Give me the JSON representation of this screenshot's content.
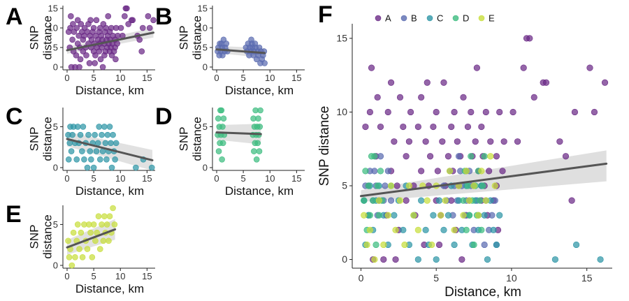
{
  "colors": {
    "A": "#6b2a86",
    "B": "#5a6bb0",
    "C": "#2e96a6",
    "D": "#3dbc80",
    "E": "#c8de3c",
    "fit_line": "#555555",
    "ci_band": "#d9d9d9"
  },
  "chart_data": [
    {
      "panel": "A",
      "type": "scatter",
      "xlabel": "Distance, km",
      "ylabel": "SNP distance",
      "xlim": [
        0,
        16
      ],
      "ylim": [
        0,
        15
      ],
      "xticks": [
        0,
        5,
        10,
        15
      ],
      "yticks": [
        0,
        5,
        10,
        15
      ],
      "series": [
        {
          "name": "A",
          "points": [
            [
              0.3,
              9
            ],
            [
              0.5,
              5
            ],
            [
              0.6,
              10
            ],
            [
              0.8,
              0
            ],
            [
              1,
              7
            ],
            [
              1.2,
              4
            ],
            [
              1.3,
              9
            ],
            [
              1.5,
              0
            ],
            [
              1.7,
              3
            ],
            [
              1.8,
              10
            ],
            [
              2,
              6
            ],
            [
              2,
              12
            ],
            [
              2.2,
              8
            ],
            [
              2.4,
              5
            ],
            [
              2.5,
              2
            ],
            [
              2.6,
              11
            ],
            [
              2.8,
              9
            ],
            [
              3,
              4
            ],
            [
              3,
              7
            ],
            [
              3.2,
              8
            ],
            [
              3.3,
              10
            ],
            [
              3.5,
              5
            ],
            [
              3.6,
              3
            ],
            [
              3.8,
              9
            ],
            [
              4,
              6
            ],
            [
              4,
              11
            ],
            [
              4.2,
              1
            ],
            [
              4.3,
              8
            ],
            [
              4.5,
              5
            ],
            [
              4.6,
              7
            ],
            [
              4.8,
              9
            ],
            [
              5,
              4
            ],
            [
              5,
              10
            ],
            [
              5.1,
              6
            ],
            [
              5.3,
              3
            ],
            [
              5.4,
              8
            ],
            [
              5.5,
              12
            ],
            [
              5.6,
              5
            ],
            [
              5.8,
              7
            ],
            [
              6,
              9
            ],
            [
              6,
              4
            ],
            [
              6.1,
              6
            ],
            [
              6.2,
              10
            ],
            [
              6.3,
              2
            ],
            [
              6.4,
              8
            ],
            [
              6.5,
              5
            ],
            [
              6.6,
              7
            ],
            [
              6.8,
              11
            ],
            [
              7,
              3
            ],
            [
              7,
              6
            ],
            [
              7.1,
              9
            ],
            [
              7.2,
              4
            ],
            [
              7.3,
              10
            ],
            [
              7.4,
              7
            ],
            [
              7.5,
              5
            ],
            [
              7.6,
              8
            ],
            [
              7.8,
              6
            ],
            [
              8,
              4
            ],
            [
              8,
              9
            ],
            [
              8.1,
              7
            ],
            [
              8.2,
              5
            ],
            [
              8.3,
              10
            ],
            [
              8.4,
              3
            ],
            [
              8.5,
              6
            ],
            [
              8.6,
              8
            ],
            [
              8.8,
              4
            ],
            [
              9,
              7
            ],
            [
              9,
              5
            ],
            [
              9.2,
              10
            ],
            [
              9.4,
              6
            ],
            [
              9.5,
              8
            ],
            [
              10.1,
              10
            ],
            [
              10.4,
              8
            ],
            [
              10.8,
              13
            ],
            [
              11,
              15
            ],
            [
              11.2,
              15
            ],
            [
              11.5,
              11
            ],
            [
              12.1,
              12
            ],
            [
              12.3,
              12
            ],
            [
              13.2,
              8
            ],
            [
              13.6,
              7
            ],
            [
              14,
              4
            ],
            [
              14.2,
              10
            ],
            [
              15.2,
              13
            ],
            [
              15.5,
              10
            ],
            [
              16.2,
              12
            ],
            [
              0.7,
              13
            ],
            [
              1.1,
              11
            ],
            [
              4.4,
              12
            ],
            [
              7.7,
              13
            ],
            [
              6.7,
              0
            ],
            [
              2.3,
              0
            ],
            [
              9.1,
              2
            ],
            [
              5.2,
              1
            ]
          ]
        }
      ],
      "trend": {
        "x": [
          0,
          16.2
        ],
        "y": [
          4.3,
          8.8
        ]
      }
    },
    {
      "panel": "B",
      "type": "scatter",
      "xlabel": "Distance, km",
      "ylabel": "SNP distance",
      "xlim": [
        0,
        16
      ],
      "ylim": [
        0,
        15
      ],
      "xticks": [
        0,
        5,
        10,
        15
      ],
      "yticks": [
        0,
        5,
        10,
        15
      ],
      "series": [
        {
          "name": "B",
          "points": [
            [
              0.2,
              4
            ],
            [
              0.3,
              5
            ],
            [
              0.5,
              3
            ],
            [
              0.6,
              6
            ],
            [
              0.8,
              4
            ],
            [
              1,
              5
            ],
            [
              1.1,
              3
            ],
            [
              1.3,
              7
            ],
            [
              1.5,
              4
            ],
            [
              1.6,
              5
            ],
            [
              1.8,
              6
            ],
            [
              2,
              4
            ],
            [
              5.5,
              5
            ],
            [
              5.7,
              4
            ],
            [
              5.9,
              6
            ],
            [
              6.1,
              3
            ],
            [
              6.2,
              5
            ],
            [
              6.4,
              4
            ],
            [
              6.5,
              7
            ],
            [
              6.7,
              5
            ],
            [
              6.9,
              3
            ],
            [
              7,
              4
            ],
            [
              7.2,
              6
            ],
            [
              7.3,
              5
            ],
            [
              7.5,
              2
            ],
            [
              7.7,
              4
            ],
            [
              7.8,
              3
            ],
            [
              8,
              5
            ],
            [
              8.2,
              1
            ],
            [
              8.3,
              4
            ],
            [
              8.5,
              2
            ],
            [
              8.7,
              3
            ],
            [
              8.9,
              4
            ],
            [
              9,
              1
            ],
            [
              0.9,
              6
            ],
            [
              6.6,
              6
            ]
          ]
        }
      ],
      "trend": {
        "x": [
          0,
          9
        ],
        "y": [
          4.5,
          3.6
        ]
      }
    },
    {
      "panel": "C",
      "type": "scatter",
      "xlabel": "Distance, km",
      "ylabel": "SNP distance",
      "xlim": [
        0,
        16
      ],
      "ylim": [
        0,
        7
      ],
      "xticks": [
        0,
        5,
        10,
        15
      ],
      "yticks": [
        0,
        5
      ],
      "series": [
        {
          "name": "C",
          "points": [
            [
              0.2,
              4
            ],
            [
              0.3,
              1
            ],
            [
              0.5,
              3
            ],
            [
              0.6,
              5
            ],
            [
              0.8,
              2
            ],
            [
              1,
              4
            ],
            [
              1.2,
              5
            ],
            [
              1.5,
              3
            ],
            [
              1.8,
              1
            ],
            [
              2,
              5
            ],
            [
              2.2,
              3
            ],
            [
              2.5,
              4
            ],
            [
              2.8,
              2
            ],
            [
              3,
              5
            ],
            [
              3.2,
              1
            ],
            [
              3.5,
              3
            ],
            [
              3.8,
              0
            ],
            [
              4,
              4
            ],
            [
              4.3,
              2
            ],
            [
              4.5,
              1
            ],
            [
              4.8,
              3
            ],
            [
              5,
              0
            ],
            [
              5.2,
              4
            ],
            [
              5.5,
              2
            ],
            [
              5.8,
              3
            ],
            [
              6,
              5
            ],
            [
              6.2,
              1
            ],
            [
              6.5,
              4
            ],
            [
              6.7,
              2
            ],
            [
              7,
              5
            ],
            [
              7.2,
              3
            ],
            [
              7.4,
              1
            ],
            [
              7.6,
              4
            ],
            [
              7.8,
              2
            ],
            [
              8,
              5
            ],
            [
              8.2,
              3
            ],
            [
              8.4,
              0
            ],
            [
              8.6,
              4
            ],
            [
              8.8,
              2
            ],
            [
              9,
              1
            ],
            [
              9.2,
              3
            ],
            [
              12.9,
              0
            ],
            [
              14.3,
              1
            ],
            [
              15.9,
              0
            ]
          ]
        }
      ],
      "trend": {
        "x": [
          0,
          16
        ],
        "y": [
          3.5,
          0.9
        ]
      }
    },
    {
      "panel": "D",
      "type": "scatter",
      "xlabel": "Distance, km",
      "ylabel": "SNP distance",
      "xlim": [
        0,
        16
      ],
      "ylim": [
        0,
        7
      ],
      "xticks": [
        0,
        5,
        10,
        15
      ],
      "yticks": [
        0,
        5
      ],
      "series": [
        {
          "name": "D",
          "points": [
            [
              0.2,
              4
            ],
            [
              0.3,
              6
            ],
            [
              0.4,
              2
            ],
            [
              0.5,
              5
            ],
            [
              0.6,
              3
            ],
            [
              0.7,
              7
            ],
            [
              0.8,
              4
            ],
            [
              1,
              1
            ],
            [
              1.1,
              5
            ],
            [
              1.2,
              3
            ],
            [
              1.3,
              6
            ],
            [
              1.4,
              4
            ],
            [
              0.9,
              7
            ],
            [
              6.8,
              4
            ],
            [
              6.9,
              6
            ],
            [
              7,
              2
            ],
            [
              7.1,
              5
            ],
            [
              7.2,
              3
            ],
            [
              7.3,
              7
            ],
            [
              7.4,
              4
            ],
            [
              7.5,
              1
            ],
            [
              7.6,
              5
            ],
            [
              7.7,
              3
            ],
            [
              7.8,
              6
            ],
            [
              7.9,
              4
            ],
            [
              8,
              2
            ],
            [
              8.1,
              5
            ],
            [
              8.2,
              7
            ]
          ]
        }
      ],
      "trend": {
        "x": [
          0,
          8.3
        ],
        "y": [
          4.3,
          4.1
        ]
      }
    },
    {
      "panel": "E",
      "type": "scatter",
      "xlabel": "Distance, km",
      "ylabel": "SNP distance",
      "xlim": [
        0,
        16
      ],
      "ylim": [
        0,
        7
      ],
      "xticks": [
        0,
        5,
        10,
        15
      ],
      "yticks": [
        0,
        5
      ],
      "series": [
        {
          "name": "E",
          "points": [
            [
              0.2,
              3
            ],
            [
              0.4,
              1
            ],
            [
              0.6,
              2
            ],
            [
              0.9,
              0
            ],
            [
              1.2,
              4
            ],
            [
              1.5,
              1
            ],
            [
              1.8,
              3
            ],
            [
              2,
              5
            ],
            [
              2.3,
              2
            ],
            [
              2.6,
              4
            ],
            [
              2.9,
              1
            ],
            [
              3.2,
              5
            ],
            [
              3.5,
              3
            ],
            [
              3.8,
              2
            ],
            [
              4.1,
              5
            ],
            [
              4.4,
              4
            ],
            [
              4.7,
              1
            ],
            [
              5,
              5
            ],
            [
              5.3,
              3
            ],
            [
              5.6,
              4
            ],
            [
              5.9,
              6
            ],
            [
              6.2,
              2
            ],
            [
              6.5,
              5
            ],
            [
              6.8,
              3
            ],
            [
              7,
              6
            ],
            [
              7.2,
              4
            ],
            [
              7.5,
              5
            ],
            [
              7.8,
              3
            ],
            [
              8,
              6
            ],
            [
              8.3,
              4
            ],
            [
              8.6,
              7
            ],
            [
              8.9,
              5
            ]
          ]
        }
      ],
      "trend": {
        "x": [
          0,
          9
        ],
        "y": [
          2.2,
          4.4
        ]
      }
    },
    {
      "panel": "F",
      "type": "scatter",
      "xlabel": "Distance, km",
      "ylabel": "SNP distance",
      "xlim": [
        -0.3,
        16.5
      ],
      "ylim": [
        -0.4,
        15.8
      ],
      "xticks": [
        0,
        5,
        10,
        15
      ],
      "yticks": [
        0,
        5,
        10,
        15
      ],
      "legend": {
        "placement": "top-left",
        "entries": [
          "A",
          "B",
          "C",
          "D",
          "E"
        ]
      },
      "trend": {
        "x": [
          0,
          16.3
        ],
        "y": [
          4.3,
          6.5
        ]
      },
      "ci": {
        "x": [
          0,
          16.3
        ],
        "lower": [
          3.9,
          5.3
        ],
        "upper": [
          4.7,
          7.4
        ]
      },
      "series_ref": [
        "A",
        "B",
        "C",
        "D",
        "E"
      ]
    }
  ]
}
